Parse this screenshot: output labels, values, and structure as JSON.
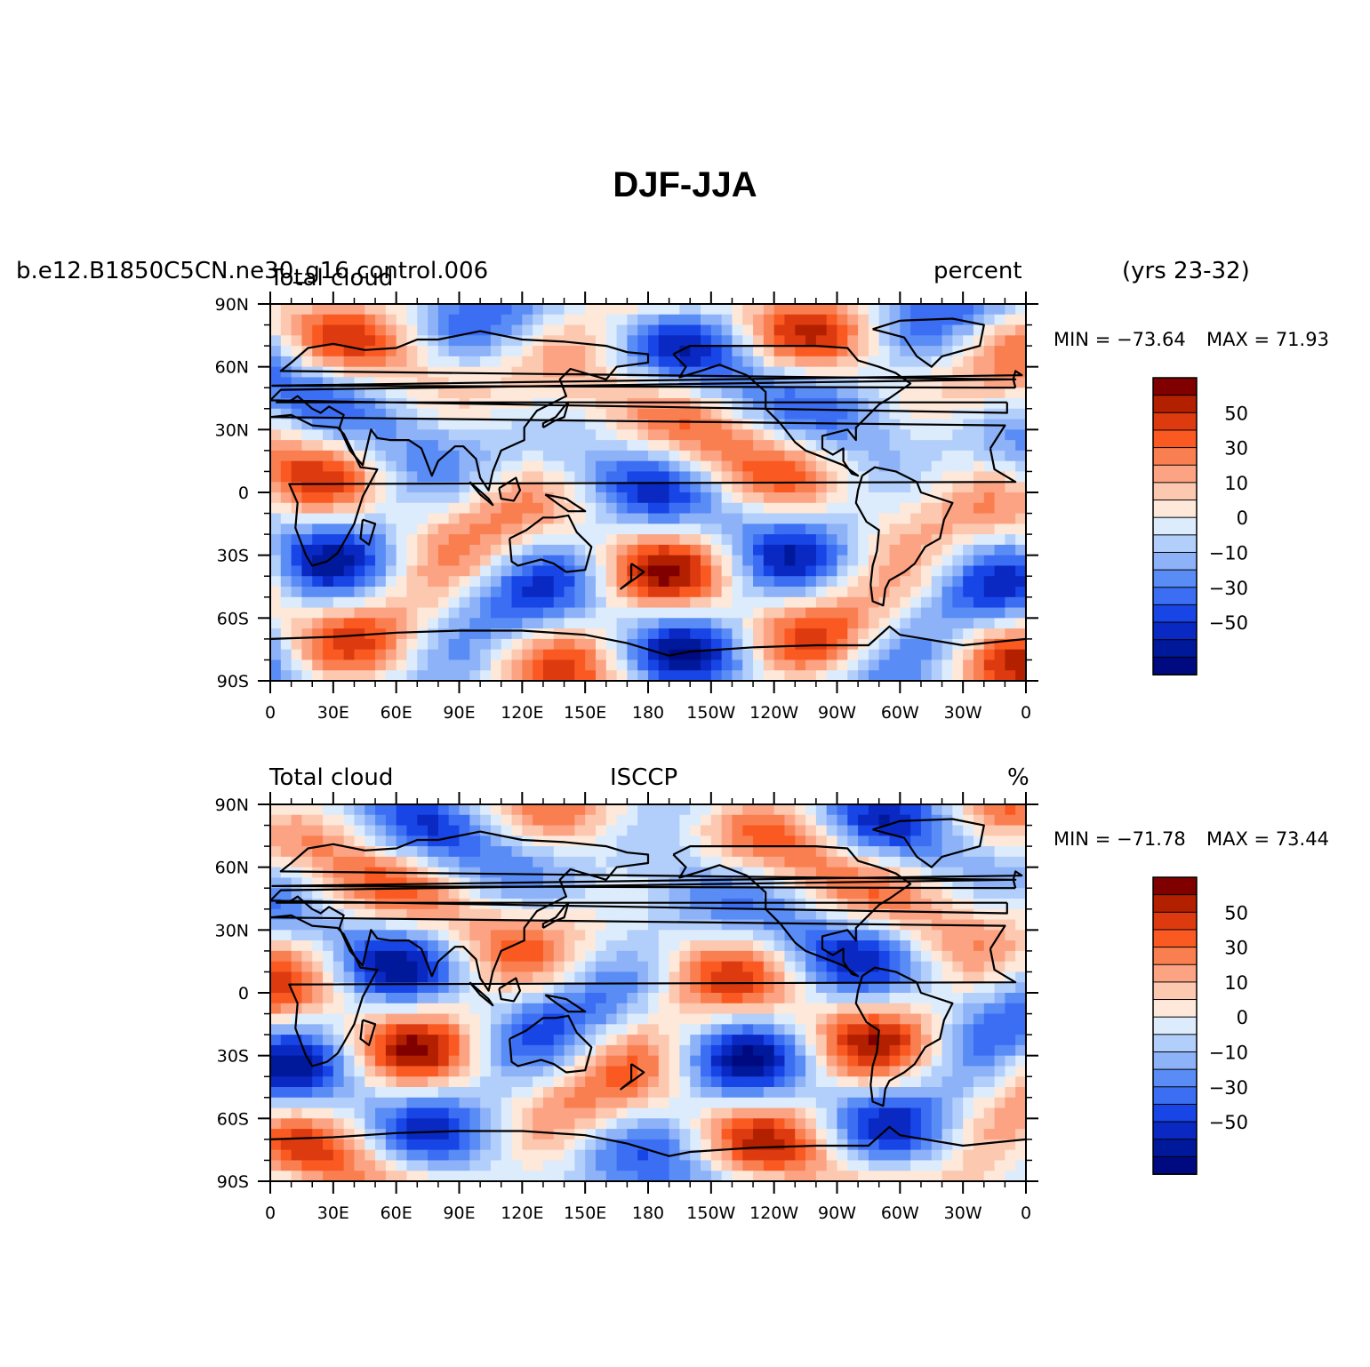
{
  "title": "DJF-JJA",
  "case_name": "b.e12.B1850C5CN.ne30_g16.control.006",
  "years": "(yrs 23-32)",
  "lat_ticks": [
    "90N",
    "60N",
    "30N",
    "0",
    "30S",
    "60S",
    "90S"
  ],
  "lon_ticks": [
    "0",
    "30E",
    "60E",
    "90E",
    "120E",
    "150E",
    "180",
    "150W",
    "120W",
    "90W",
    "60W",
    "30W",
    "0"
  ],
  "colorbar": {
    "labels": [
      "50",
      "30",
      "10",
      "0",
      "−10",
      "−30",
      "−50"
    ],
    "colors": [
      "#800000",
      "#b22000",
      "#dd3a10",
      "#fa5a22",
      "#fa7f50",
      "#fca384",
      "#fcc8b0",
      "#fde8da",
      "#dcecfc",
      "#b2cefa",
      "#8eb2f8",
      "#5a8cf6",
      "#3c6ef4",
      "#1845e6",
      "#0a28c2",
      "#00189a",
      "#000a80"
    ]
  },
  "panels": [
    {
      "left_label": "Total cloud",
      "center_label": "",
      "right_label": "percent",
      "min_label": "MIN = −73.64",
      "max_label": "MAX =  71.93",
      "range": {
        "min": -73.64,
        "max": 71.93
      },
      "colormap_icon": "filled-contour-field"
    },
    {
      "left_label": "Total cloud",
      "center_label": "ISCCP",
      "right_label": "%",
      "min_label": "MIN = −71.78",
      "max_label": "MAX =  73.44",
      "range": {
        "min": -71.78,
        "max": 73.44
      },
      "colormap_icon": "filled-contour-field"
    }
  ]
}
